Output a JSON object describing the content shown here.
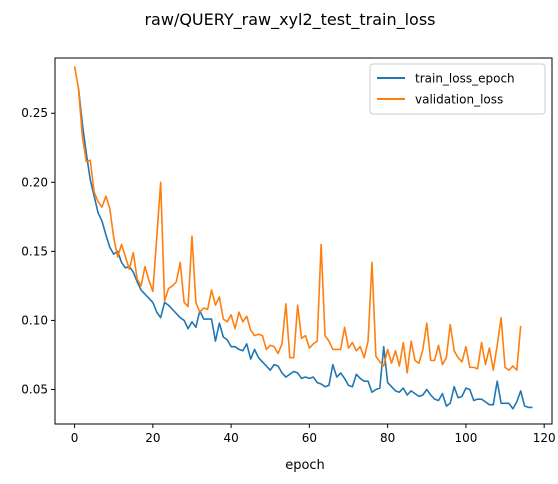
{
  "chart_data": {
    "type": "line",
    "title": "raw/QUERY_raw_xyl2_test_train_loss",
    "xlabel": "epoch",
    "ylabel": "",
    "xlim": [
      -5,
      122
    ],
    "ylim": [
      0.025,
      0.29
    ],
    "x_ticks": [
      0,
      20,
      40,
      60,
      80,
      100,
      120
    ],
    "x_tick_labels": [
      "0",
      "20",
      "40",
      "60",
      "80",
      "100",
      "120"
    ],
    "y_ticks": [
      0.05,
      0.1,
      0.15,
      0.2,
      0.25
    ],
    "y_tick_labels": [
      "0.05",
      "0.10",
      "0.15",
      "0.20",
      "0.25"
    ],
    "grid": false,
    "legend_position": "top-right",
    "series": [
      {
        "name": "train_loss_epoch",
        "color": "#1f77b4",
        "x_start": 1,
        "values": [
          0.268,
          0.242,
          0.221,
          0.202,
          0.19,
          0.178,
          0.172,
          0.162,
          0.153,
          0.148,
          0.15,
          0.142,
          0.138,
          0.139,
          0.135,
          0.128,
          0.122,
          0.119,
          0.116,
          0.113,
          0.106,
          0.102,
          0.113,
          0.111,
          0.108,
          0.105,
          0.102,
          0.1,
          0.094,
          0.099,
          0.095,
          0.107,
          0.101,
          0.101,
          0.101,
          0.085,
          0.098,
          0.088,
          0.086,
          0.081,
          0.081,
          0.079,
          0.078,
          0.083,
          0.072,
          0.079,
          0.073,
          0.07,
          0.067,
          0.064,
          0.068,
          0.067,
          0.062,
          0.059,
          0.061,
          0.063,
          0.062,
          0.058,
          0.059,
          0.058,
          0.059,
          0.055,
          0.054,
          0.052,
          0.053,
          0.068,
          0.059,
          0.062,
          0.058,
          0.053,
          0.052,
          0.061,
          0.058,
          0.056,
          0.056,
          0.048,
          0.05,
          0.051,
          0.081,
          0.055,
          0.052,
          0.049,
          0.048,
          0.051,
          0.046,
          0.049,
          0.047,
          0.045,
          0.046,
          0.05,
          0.046,
          0.043,
          0.042,
          0.047,
          0.038,
          0.04,
          0.052,
          0.044,
          0.045,
          0.051,
          0.05,
          0.042,
          0.043,
          0.043,
          0.041,
          0.039,
          0.039,
          0.056,
          0.04,
          0.04,
          0.04,
          0.036,
          0.041,
          0.049,
          0.038,
          0.037,
          0.037
        ]
      },
      {
        "name": "validation_loss",
        "color": "#ff7f0e",
        "x_start": 0,
        "values": [
          0.284,
          0.268,
          0.233,
          0.215,
          0.216,
          0.193,
          0.186,
          0.182,
          0.19,
          0.181,
          0.16,
          0.146,
          0.155,
          0.146,
          0.137,
          0.149,
          0.13,
          0.125,
          0.139,
          0.129,
          0.121,
          0.16,
          0.2,
          0.114,
          0.123,
          0.125,
          0.128,
          0.142,
          0.113,
          0.11,
          0.161,
          0.113,
          0.106,
          0.109,
          0.108,
          0.122,
          0.111,
          0.117,
          0.101,
          0.099,
          0.104,
          0.094,
          0.106,
          0.099,
          0.103,
          0.093,
          0.089,
          0.09,
          0.089,
          0.079,
          0.082,
          0.081,
          0.076,
          0.083,
          0.112,
          0.073,
          0.073,
          0.111,
          0.087,
          0.089,
          0.08,
          0.083,
          0.085,
          0.155,
          0.089,
          0.085,
          0.079,
          0.079,
          0.079,
          0.095,
          0.08,
          0.084,
          0.078,
          0.081,
          0.073,
          0.085,
          0.142,
          0.074,
          0.07,
          0.067,
          0.079,
          0.069,
          0.078,
          0.067,
          0.084,
          0.062,
          0.085,
          0.071,
          0.069,
          0.079,
          0.098,
          0.071,
          0.071,
          0.082,
          0.068,
          0.073,
          0.097,
          0.078,
          0.073,
          0.07,
          0.081,
          0.066,
          0.066,
          0.065,
          0.084,
          0.068,
          0.08,
          0.064,
          0.082,
          0.102,
          0.066,
          0.064,
          0.067,
          0.064,
          0.096
        ]
      }
    ]
  }
}
